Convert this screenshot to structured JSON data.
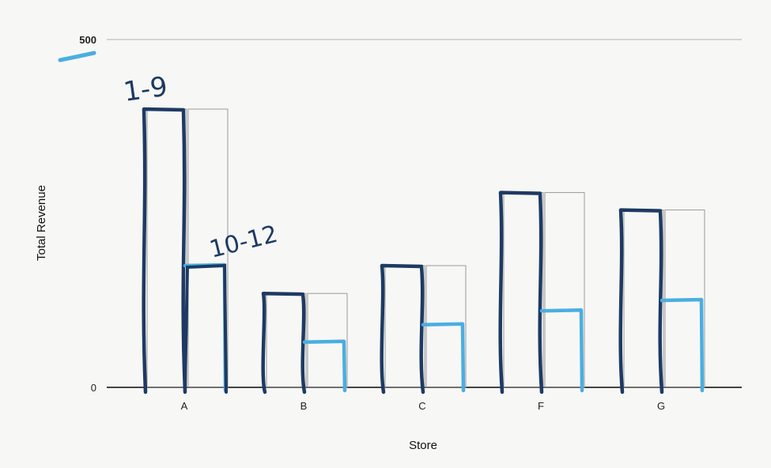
{
  "chart_data": {
    "type": "bar",
    "title": "",
    "xlabel": "Store",
    "ylabel": "Total Revenue",
    "ylim": [
      0,
      500
    ],
    "yticks": [
      {
        "value": 0,
        "label": "0"
      },
      {
        "value": 500,
        "label": "500"
      }
    ],
    "categories": [
      "A",
      "B",
      "C",
      "F",
      "G"
    ],
    "series": [
      {
        "name": "1-9",
        "values": [
          400,
          135,
          175,
          280,
          255
        ]
      },
      {
        "name": "10-12",
        "values": [
          175,
          65,
          90,
          110,
          125
        ]
      }
    ],
    "grid": false,
    "legend": "none"
  },
  "colors": {
    "outline_gray": "#9a9a9a",
    "ink_dark": "#1d3a63",
    "ink_light": "#4aaee0",
    "axis": "#444444"
  }
}
